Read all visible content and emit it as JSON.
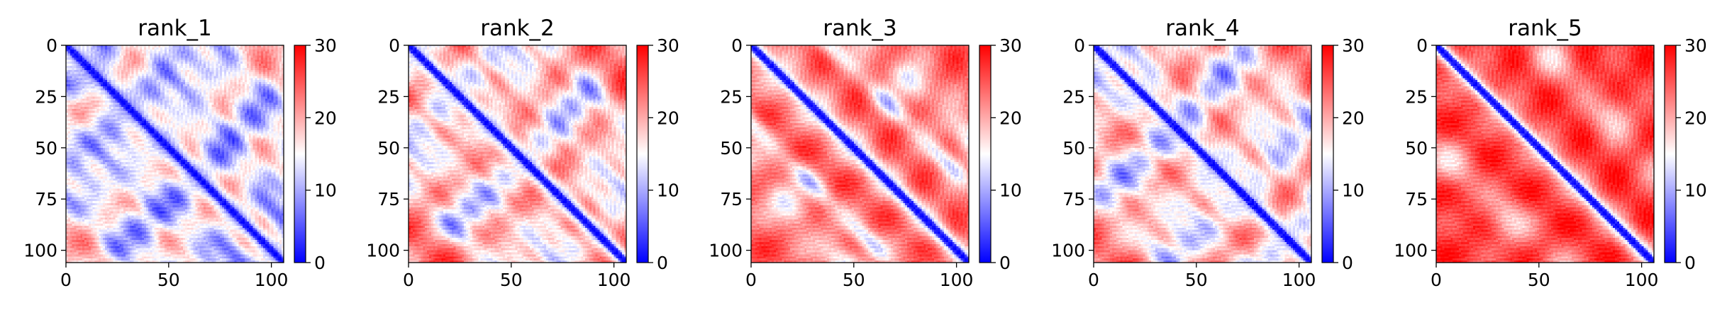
{
  "chart_data": [
    {
      "type": "heatmap",
      "title": "rank_1",
      "n": 106,
      "xticks": [
        0,
        50,
        100
      ],
      "yticks": [
        0,
        25,
        50,
        75,
        100
      ],
      "colorbar": {
        "ticks": [
          0,
          10,
          20,
          30
        ],
        "min": 0,
        "max": 30
      },
      "colormap": {
        "low": "#0000ff",
        "mid": "#ffffff",
        "high": "#ff0000"
      },
      "pattern": {
        "bands": [
          [
            20,
            11,
            6
          ],
          [
            36,
            9,
            5
          ],
          [
            55,
            12,
            6
          ],
          [
            75,
            10,
            5
          ]
        ],
        "background": 19,
        "ripple": 5
      }
    },
    {
      "type": "heatmap",
      "title": "rank_2",
      "n": 106,
      "xticks": [
        0,
        50,
        100
      ],
      "yticks": [
        0,
        25,
        50,
        75,
        100
      ],
      "colorbar": {
        "ticks": [
          0,
          10,
          20,
          30
        ],
        "min": 0,
        "max": 30
      },
      "colormap": {
        "low": "#0000ff",
        "mid": "#ffffff",
        "high": "#ff0000"
      },
      "pattern": {
        "bands": [
          [
            18,
            10,
            5
          ],
          [
            34,
            10,
            5
          ],
          [
            50,
            11,
            6
          ],
          [
            66,
            11,
            6
          ]
        ],
        "background": 23,
        "ripple": 5
      }
    },
    {
      "type": "heatmap",
      "title": "rank_3",
      "n": 106,
      "xticks": [
        0,
        50,
        100
      ],
      "yticks": [
        0,
        25,
        50,
        75,
        100
      ],
      "colorbar": {
        "ticks": [
          0,
          10,
          20,
          30
        ],
        "min": 0,
        "max": 30
      },
      "colormap": {
        "low": "#0000ff",
        "mid": "#ffffff",
        "high": "#ff0000"
      },
      "pattern": {
        "bands": [
          [
            38,
            9,
            5
          ],
          [
            60,
            14,
            5
          ]
        ],
        "background": 24,
        "ripple": 4
      }
    },
    {
      "type": "heatmap",
      "title": "rank_4",
      "n": 106,
      "xticks": [
        0,
        50,
        100
      ],
      "yticks": [
        0,
        25,
        50,
        75,
        100
      ],
      "colorbar": {
        "ticks": [
          0,
          10,
          20,
          30
        ],
        "min": 0,
        "max": 30
      },
      "colormap": {
        "low": "#0000ff",
        "mid": "#ffffff",
        "high": "#ff0000"
      },
      "pattern": {
        "bands": [
          [
            16,
            11,
            5
          ],
          [
            33,
            11,
            5
          ],
          [
            50,
            12,
            6
          ],
          [
            68,
            13,
            6
          ]
        ],
        "background": 23,
        "ripple": 5
      }
    },
    {
      "type": "heatmap",
      "title": "rank_5",
      "n": 106,
      "xticks": [
        0,
        50,
        100
      ],
      "yticks": [
        0,
        25,
        50,
        75,
        100
      ],
      "colorbar": {
        "ticks": [
          0,
          10,
          20,
          30
        ],
        "min": 0,
        "max": 30
      },
      "colormap": {
        "low": "#0000ff",
        "mid": "#ffffff",
        "high": "#ff0000"
      },
      "pattern": {
        "bands": [
          [
            50,
            20,
            4
          ]
        ],
        "background": 27,
        "ripple": 3
      }
    }
  ]
}
